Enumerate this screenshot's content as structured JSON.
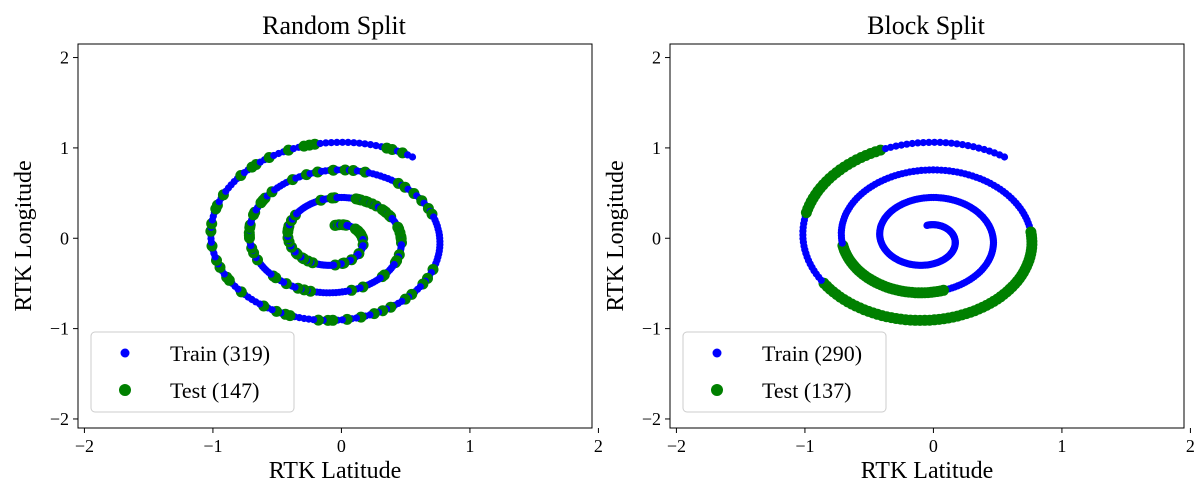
{
  "chart_data": [
    {
      "type": "scatter",
      "title": "Random Split",
      "xlabel": "RTK Latitude",
      "ylabel": "RTK Longitude",
      "xlim": [
        -2.05,
        1.95
      ],
      "ylim": [
        -2.1,
        2.15
      ],
      "xticks": [
        "−2",
        "−1",
        "0",
        "1",
        "2"
      ],
      "yticks": [
        "−2",
        "−1",
        "0",
        "1",
        "2"
      ],
      "grid": false,
      "legend_position": "lower-left",
      "series": [
        {
          "name": "Train (319)",
          "color": "#0000ff",
          "shape": "spiral-path"
        },
        {
          "name": "Test (147)",
          "color": "#008000",
          "shape": "random-subset-of-spiral"
        }
      ]
    },
    {
      "type": "scatter",
      "title": "Block Split",
      "xlabel": "RTK Latitude",
      "ylabel": "RTK Longitude",
      "xlim": [
        -2.05,
        1.95
      ],
      "ylim": [
        -2.1,
        2.15
      ],
      "xticks": [
        "−2",
        "−1",
        "0",
        "1",
        "2"
      ],
      "yticks": [
        "−2",
        "−1",
        "0",
        "1",
        "2"
      ],
      "grid": false,
      "legend_position": "lower-left",
      "series": [
        {
          "name": "Train (290)",
          "color": "#0000ff",
          "shape": "spiral-path"
        },
        {
          "name": "Test (137)",
          "color": "#008000",
          "shape": "contiguous-block-of-spiral"
        }
      ]
    }
  ]
}
